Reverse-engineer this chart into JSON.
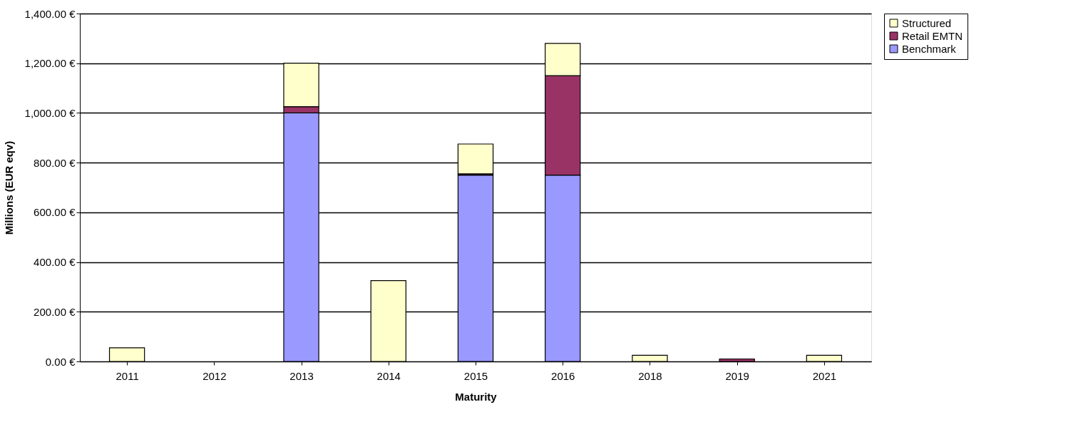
{
  "chart_data": {
    "type": "bar",
    "stacked": true,
    "xlabel": "Maturity",
    "ylabel": "Millions (EUR eqv)",
    "categories": [
      "2011",
      "2012",
      "2013",
      "2014",
      "2015",
      "2016",
      "2018",
      "2019",
      "2021"
    ],
    "series": [
      {
        "name": "Benchmark",
        "color": "#9999ff",
        "values": [
          0,
          0,
          1000,
          0,
          750,
          750,
          0,
          0,
          0
        ]
      },
      {
        "name": "Retail EMTN",
        "color": "#993366",
        "values": [
          0,
          0,
          25,
          0,
          5,
          400,
          0,
          10,
          0
        ]
      },
      {
        "name": "Structured",
        "color": "#ffffcc",
        "values": [
          55,
          0,
          175,
          325,
          120,
          130,
          25,
          0,
          25
        ]
      }
    ],
    "ylim": [
      0,
      1400
    ],
    "yticks": [
      {
        "value": 0,
        "label": "0.00 €"
      },
      {
        "value": 200,
        "label": "200.00 €"
      },
      {
        "value": 400,
        "label": "400.00 €"
      },
      {
        "value": 600,
        "label": "600.00 €"
      },
      {
        "value": 800,
        "label": "800.00 €"
      },
      {
        "value": 1000,
        "label": "1,000.00 €"
      },
      {
        "value": 1200,
        "label": "1,200.00 €"
      },
      {
        "value": 1400,
        "label": "1,400.00 €"
      }
    ],
    "grid": "y",
    "legend": "right"
  }
}
